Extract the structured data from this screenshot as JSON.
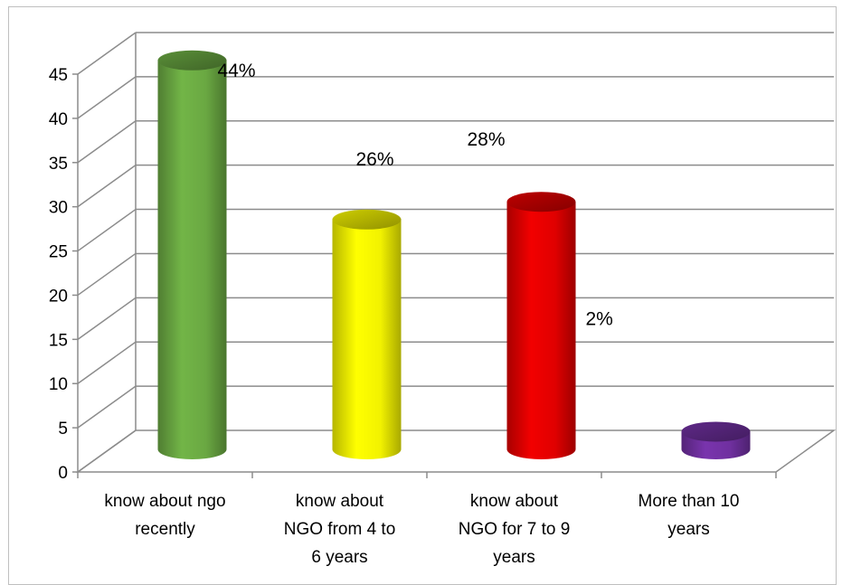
{
  "chart_data": {
    "type": "bar",
    "categories": [
      [
        "know about ngo",
        "recently"
      ],
      [
        "know about",
        "NGO from 4 to",
        "6 years"
      ],
      [
        "know about",
        "NGO for 7 to 9",
        "years"
      ],
      [
        "More than 10",
        "years"
      ]
    ],
    "values": [
      44,
      26,
      28,
      2
    ],
    "data_labels": [
      "44%",
      "26%",
      "28%",
      "2%"
    ],
    "title": "",
    "xlabel": "",
    "ylabel": "",
    "ylim": [
      0,
      45
    ],
    "yticks": [
      "0",
      "5",
      "10",
      "15",
      "20",
      "25",
      "30",
      "35",
      "40",
      "45"
    ],
    "grid": true,
    "legend": "none",
    "colors": [
      "#6aa842",
      "#f2f200",
      "#e00000",
      "#7030a0"
    ]
  }
}
